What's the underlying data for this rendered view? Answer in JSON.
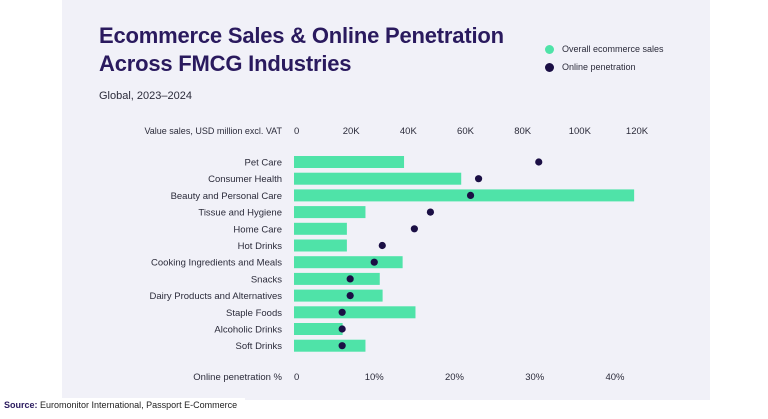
{
  "chart_data": {
    "type": "bar",
    "title": "Ecommerce Sales & Online Penetration Across FMCG Industries",
    "subtitle": "Global, 2023–2024",
    "categories": [
      "Pet Care",
      "Consumer Health",
      "Beauty and Personal Care",
      "Tissue and Hygiene",
      "Home Care",
      "Hot Drinks",
      "Cooking Ingredients and Meals",
      "Snacks",
      "Dairy Products and Alternatives",
      "Staple Foods",
      "Alcoholic Drinks",
      "Soft Drinks"
    ],
    "series": [
      {
        "name": "Overall ecommerce sales",
        "type": "bar",
        "axis": "top",
        "color": "#4fe3a8",
        "values": [
          38500,
          58500,
          119000,
          25000,
          18500,
          18500,
          38000,
          30000,
          31000,
          42500,
          17000,
          25000
        ]
      },
      {
        "name": "Online penetration",
        "type": "scatter",
        "axis": "bottom",
        "color": "#1b0f45",
        "values": [
          30.5,
          23,
          22,
          17,
          15,
          11,
          10,
          7,
          7,
          6,
          6,
          6
        ]
      }
    ],
    "top_axis": {
      "label": "Value sales, USD million excl. VAT",
      "min": 0,
      "max": 120000,
      "ticks": [
        0,
        20000,
        40000,
        60000,
        80000,
        100000,
        120000
      ],
      "tick_labels": [
        "0",
        "20K",
        "40K",
        "60K",
        "80K",
        "100K",
        "120K"
      ]
    },
    "bottom_axis": {
      "label": "Online penetration %",
      "min": 0,
      "max": 40,
      "ticks": [
        0,
        10,
        20,
        30,
        40
      ],
      "tick_labels": [
        "0",
        "10%",
        "20%",
        "30%",
        "40%"
      ]
    },
    "legend_position": "top-right",
    "grid": false
  },
  "source": {
    "label": "Source:",
    "text": "Euromonitor International, Passport E-Commerce"
  }
}
